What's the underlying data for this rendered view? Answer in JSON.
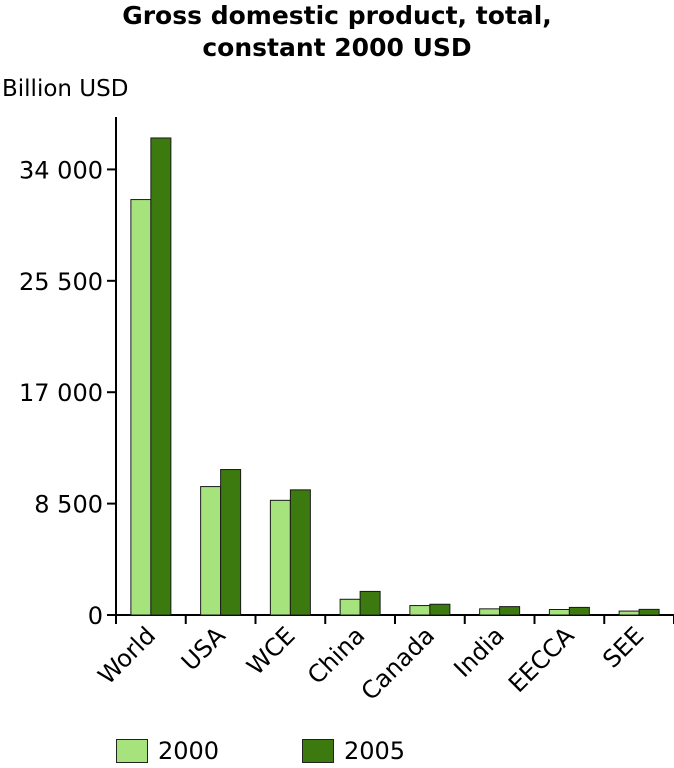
{
  "title_line1": "Gross domestic product, total,",
  "title_line2": "constant 2000 USD",
  "unit_label": "Billion USD",
  "colors": {
    "s2000": "#a6e37c",
    "s2005": "#3c7a0f"
  },
  "chart_data": {
    "type": "bar",
    "categories": [
      "World",
      "USA",
      "WCE",
      "China",
      "Canada",
      "India",
      "EECCA",
      "SEE"
    ],
    "series": [
      {
        "name": "2000",
        "values": [
          31700,
          9800,
          8750,
          1200,
          720,
          470,
          420,
          300
        ]
      },
      {
        "name": "2005",
        "values": [
          36400,
          11100,
          9550,
          1800,
          820,
          640,
          580,
          430
        ]
      }
    ],
    "yticks": [
      0,
      8500,
      17000,
      25500,
      34000
    ],
    "ytick_labels": [
      "0",
      "8 500",
      "17 000",
      "25 500",
      "34 000"
    ],
    "ylim": [
      0,
      38000
    ],
    "ylabel": "Billion USD",
    "grid": false,
    "legend_position": "bottom"
  }
}
